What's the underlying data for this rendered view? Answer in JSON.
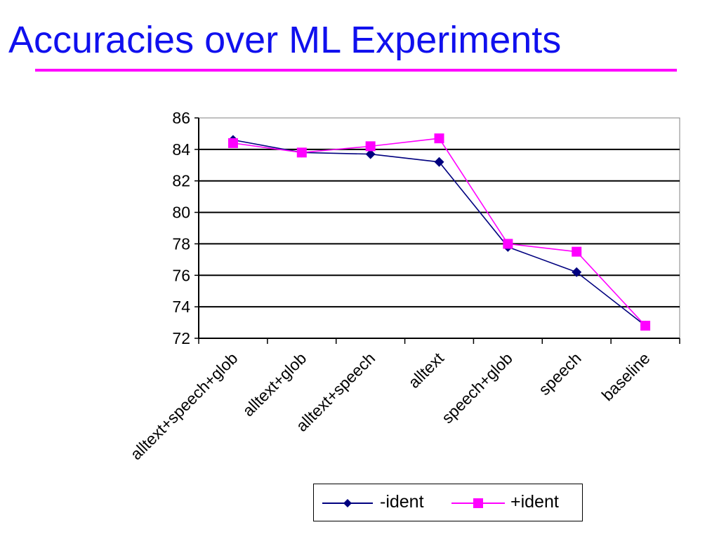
{
  "page": {
    "title": "Accuracies over ML Experiments"
  },
  "colors": {
    "title": "#1010ee",
    "title_rule": "#ff00ff"
  },
  "chart_data": {
    "type": "line",
    "title": "",
    "xlabel": "",
    "ylabel": "",
    "categories": [
      "alltext+speech+glob",
      "alltext+glob",
      "alltext+speech",
      "alltext",
      "speech+glob",
      "speech",
      "baseline"
    ],
    "ylim": [
      72,
      86
    ],
    "yticks": [
      "86",
      "84",
      "82",
      "80",
      "78",
      "76",
      "74",
      "72"
    ],
    "grid": true,
    "legend_position": "bottom",
    "series": [
      {
        "name": "-ident",
        "color": "#00007f",
        "marker": "diamond",
        "values": [
          84.6,
          83.8,
          83.7,
          83.2,
          77.8,
          76.2,
          72.8
        ]
      },
      {
        "name": "+ident",
        "color": "#ff00ff",
        "marker": "square",
        "values": [
          84.4,
          83.8,
          84.2,
          84.7,
          78.0,
          77.5,
          72.8
        ]
      }
    ]
  }
}
